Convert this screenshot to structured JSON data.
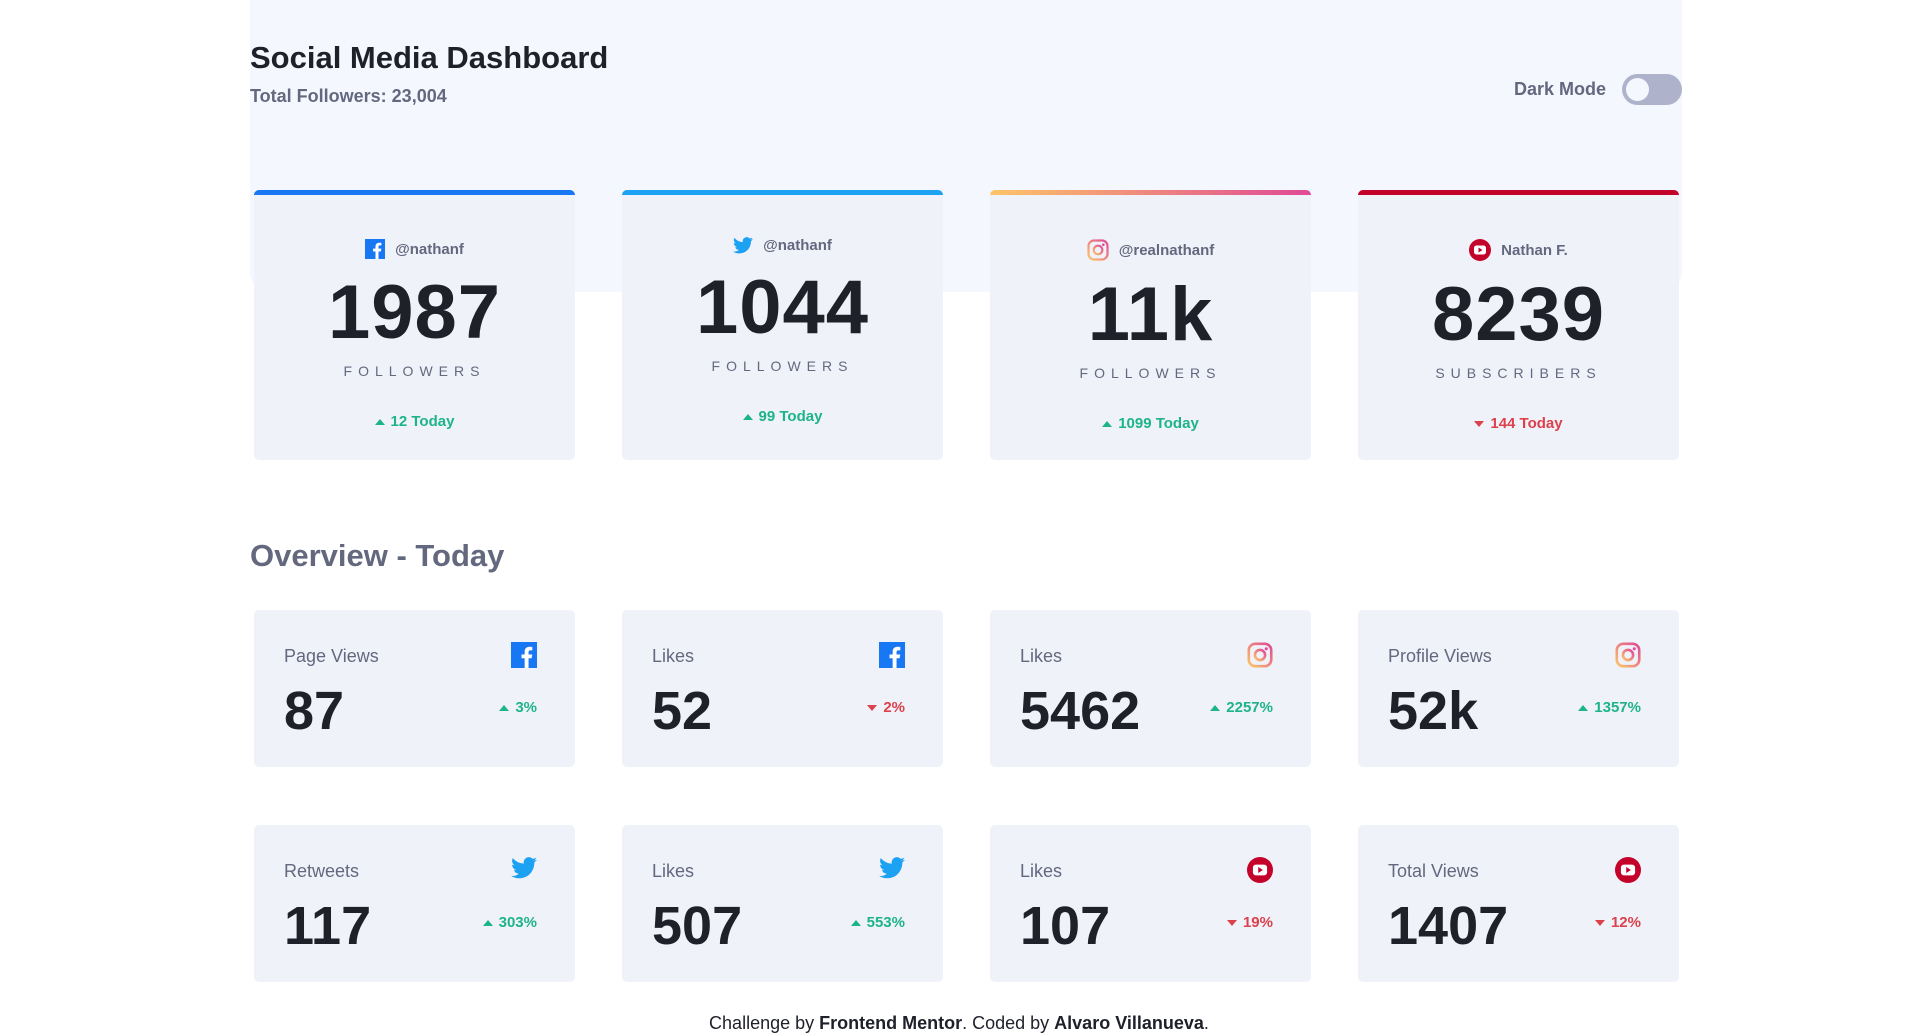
{
  "header": {
    "title": "Social Media Dashboard",
    "subtitle": "Total Followers: 23,004",
    "dark_mode_label": "Dark Mode"
  },
  "colors": {
    "facebook": "#1877f2",
    "twitter": "#1da1f2",
    "instagram_start": "#fdc468",
    "instagram_end": "#df4996",
    "youtube": "#c4032b",
    "up": "#1db489",
    "down": "#dc414c"
  },
  "cards": [
    {
      "network": "facebook",
      "icon": "facebook-icon",
      "handle": "@nathanf",
      "count": "1987",
      "unit": "FOLLOWERS",
      "delta": "12 Today",
      "trend": "up"
    },
    {
      "network": "twitter",
      "icon": "twitter-icon",
      "handle": "@nathanf",
      "count": "1044",
      "unit": "FOLLOWERS",
      "delta": "99 Today",
      "trend": "up"
    },
    {
      "network": "instagram",
      "icon": "instagram-icon",
      "handle": "@realnathanf",
      "count": "11k",
      "unit": "FOLLOWERS",
      "delta": "1099 Today",
      "trend": "up"
    },
    {
      "network": "youtube",
      "icon": "youtube-icon",
      "handle": "Nathan F.",
      "count": "8239",
      "unit": "SUBSCRIBERS",
      "delta": "144 Today",
      "trend": "down"
    }
  ],
  "overview": {
    "title": "Overview - Today",
    "tiles": [
      {
        "label": "Page Views",
        "icon": "facebook-icon",
        "value": "87",
        "delta": "3%",
        "trend": "up"
      },
      {
        "label": "Likes",
        "icon": "facebook-icon",
        "value": "52",
        "delta": "2%",
        "trend": "down"
      },
      {
        "label": "Likes",
        "icon": "instagram-icon",
        "value": "5462",
        "delta": "2257%",
        "trend": "up"
      },
      {
        "label": "Profile Views",
        "icon": "instagram-icon",
        "value": "52k",
        "delta": "1357%",
        "trend": "up"
      },
      {
        "label": "Retweets",
        "icon": "twitter-icon",
        "value": "117",
        "delta": "303%",
        "trend": "up"
      },
      {
        "label": "Likes",
        "icon": "twitter-icon",
        "value": "507",
        "delta": "553%",
        "trend": "up"
      },
      {
        "label": "Likes",
        "icon": "youtube-icon",
        "value": "107",
        "delta": "19%",
        "trend": "down"
      },
      {
        "label": "Total Views",
        "icon": "youtube-icon",
        "value": "1407",
        "delta": "12%",
        "trend": "down"
      }
    ]
  },
  "footer": {
    "prefix": "Challenge by ",
    "link1": "Frontend Mentor",
    "middle": ". Coded by ",
    "link2": "Alvaro Villanueva",
    "suffix": "."
  }
}
